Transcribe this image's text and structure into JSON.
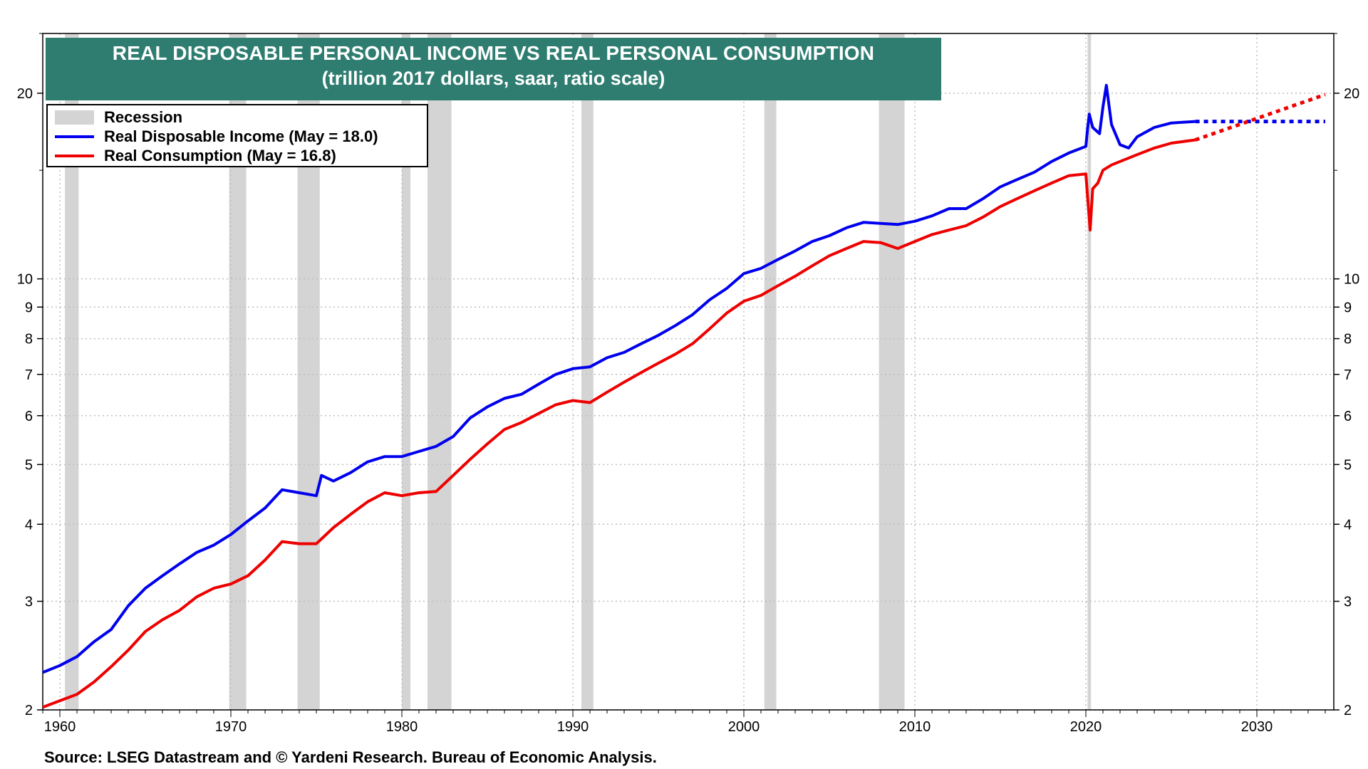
{
  "title": "REAL DISPOSABLE PERSONAL INCOME VS REAL PERSONAL CONSUMPTION",
  "subtitle": "(trillion 2017 dollars, saar, ratio scale)",
  "source": "Source: LSEG Datastream and © Yardeni Research. Bureau of Economic Analysis.",
  "legend": {
    "recession": "Recession",
    "income": "Real Disposable Income (May = 18.0)",
    "consumption": "Real Consumption (May = 16.8)"
  },
  "colors": {
    "title_bg": "#2e7d70",
    "income": "#0000ee",
    "consumption": "#ee0000",
    "recession": "#d4d4d4",
    "grid": "#bfbfbf"
  },
  "chart_data": {
    "type": "line",
    "title": "REAL DISPOSABLE PERSONAL INCOME VS REAL PERSONAL CONSUMPTION",
    "subtitle": "(trillion 2017 dollars, saar, ratio scale)",
    "y_scale": "log",
    "xlim": [
      1959,
      2034.5
    ],
    "ylim": [
      2,
      25
    ],
    "x_ticks": [
      1960,
      1970,
      1980,
      1990,
      2000,
      2010,
      2020,
      2030
    ],
    "y_ticks": [
      2,
      3,
      4,
      5,
      6,
      7,
      8,
      9,
      10,
      20
    ],
    "grid": true,
    "legend_position": "top-left",
    "recessions": [
      [
        1960.3,
        1961.1
      ],
      [
        1969.9,
        1970.9
      ],
      [
        1973.9,
        1975.2
      ],
      [
        1980.0,
        1980.5
      ],
      [
        1981.5,
        1982.9
      ],
      [
        1990.5,
        1991.2
      ],
      [
        2001.2,
        2001.9
      ],
      [
        2007.9,
        2009.4
      ],
      [
        2020.1,
        2020.3
      ]
    ],
    "series": [
      {
        "name": "Real Disposable Income (May = 18.0)",
        "color": "#0000ee",
        "x": [
          1959,
          1960,
          1961,
          1962,
          1963,
          1964,
          1965,
          1966,
          1967,
          1968,
          1969,
          1970,
          1971,
          1972,
          1973,
          1974,
          1975,
          1975.3,
          1976,
          1977,
          1978,
          1979,
          1980,
          1981,
          1982,
          1983,
          1984,
          1985,
          1986,
          1987,
          1988,
          1989,
          1990,
          1991,
          1992,
          1993,
          1994,
          1995,
          1996,
          1997,
          1998,
          1999,
          2000,
          2001,
          2002,
          2003,
          2004,
          2005,
          2006,
          2007,
          2008,
          2009,
          2010,
          2011,
          2012,
          2013,
          2014,
          2015,
          2016,
          2017,
          2018,
          2019,
          2020,
          2020.1,
          2020.2,
          2020.4,
          2020.8,
          2021.0,
          2021.2,
          2021.5,
          2022.0,
          2022.5,
          2023.0,
          2024.0,
          2025.0,
          2026.4
        ],
        "y": [
          2.3,
          2.36,
          2.44,
          2.58,
          2.7,
          2.95,
          3.15,
          3.3,
          3.45,
          3.6,
          3.7,
          3.85,
          4.05,
          4.25,
          4.55,
          4.5,
          4.45,
          4.8,
          4.7,
          4.85,
          5.05,
          5.15,
          5.15,
          5.25,
          5.35,
          5.55,
          5.95,
          6.2,
          6.4,
          6.5,
          6.75,
          7.0,
          7.15,
          7.2,
          7.45,
          7.6,
          7.85,
          8.1,
          8.4,
          8.75,
          9.25,
          9.65,
          10.2,
          10.4,
          10.75,
          11.1,
          11.5,
          11.75,
          12.1,
          12.35,
          12.3,
          12.25,
          12.4,
          12.65,
          13.0,
          13.0,
          13.5,
          14.1,
          14.5,
          14.9,
          15.5,
          16.0,
          16.4,
          17.5,
          18.5,
          17.6,
          17.2,
          19.0,
          20.6,
          17.8,
          16.5,
          16.3,
          17.0,
          17.6,
          17.9,
          18.0
        ]
      },
      {
        "name": "Real Consumption (May = 16.8)",
        "color": "#ee0000",
        "x": [
          1959,
          1960,
          1961,
          1962,
          1963,
          1964,
          1965,
          1966,
          1967,
          1968,
          1969,
          1970,
          1971,
          1972,
          1973,
          1974,
          1975,
          1976,
          1977,
          1978,
          1979,
          1980,
          1981,
          1982,
          1983,
          1984,
          1985,
          1986,
          1987,
          1988,
          1989,
          1990,
          1991,
          1992,
          1993,
          1994,
          1995,
          1996,
          1997,
          1998,
          1999,
          2000,
          2001,
          2002,
          2003,
          2004,
          2005,
          2006,
          2007,
          2008,
          2009,
          2010,
          2011,
          2012,
          2013,
          2014,
          2015,
          2016,
          2017,
          2018,
          2019,
          2020,
          2020.25,
          2020.4,
          2020.7,
          2021.0,
          2021.5,
          2022,
          2023,
          2024,
          2025,
          2026.4
        ],
        "y": [
          2.02,
          2.07,
          2.12,
          2.22,
          2.35,
          2.5,
          2.68,
          2.8,
          2.9,
          3.05,
          3.15,
          3.2,
          3.3,
          3.5,
          3.75,
          3.72,
          3.72,
          3.95,
          4.15,
          4.35,
          4.5,
          4.45,
          4.5,
          4.52,
          4.8,
          5.1,
          5.4,
          5.7,
          5.85,
          6.05,
          6.25,
          6.35,
          6.3,
          6.55,
          6.8,
          7.05,
          7.3,
          7.55,
          7.85,
          8.3,
          8.8,
          9.2,
          9.4,
          9.75,
          10.1,
          10.5,
          10.9,
          11.2,
          11.5,
          11.45,
          11.2,
          11.5,
          11.8,
          12.0,
          12.2,
          12.6,
          13.1,
          13.5,
          13.9,
          14.3,
          14.7,
          14.8,
          12.0,
          14.0,
          14.3,
          15.0,
          15.3,
          15.5,
          15.9,
          16.3,
          16.6,
          16.8
        ]
      }
    ],
    "projections": [
      {
        "name": "Real Disposable Income projection",
        "color": "#0000ee",
        "x": [
          2026.4,
          2034.0
        ],
        "y": [
          18.0,
          18.0
        ]
      },
      {
        "name": "Real Consumption projection",
        "color": "#ee0000",
        "x": [
          2026.4,
          2034.0
        ],
        "y": [
          16.8,
          19.9
        ]
      }
    ]
  }
}
